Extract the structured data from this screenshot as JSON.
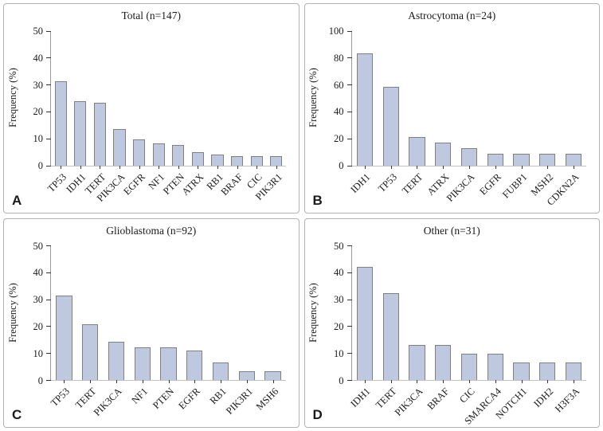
{
  "figure": {
    "bar_fill": "#bec8df",
    "bar_border": "#808080",
    "panel_border": "#b3b3b3",
    "axis_color": "#9a9a9a",
    "baseline_color": "#c2c2c2"
  },
  "chart_data": [
    {
      "type": "bar",
      "panel_label": "A",
      "title": "Total (n=147)",
      "xlabel": "",
      "ylabel": "Frequency (%)",
      "ylim": [
        0,
        50
      ],
      "yticks": [
        0,
        10,
        20,
        30,
        40,
        50
      ],
      "grid": false,
      "legend": "none",
      "categories": [
        "TP53",
        "IDH1",
        "TERT",
        "PIK3CA",
        "EGFR",
        "NF1",
        "PTEN",
        "ATRX",
        "RB1",
        "BRAF",
        "CIC",
        "PIK3R1"
      ],
      "values": [
        31.3,
        23.8,
        23.1,
        13.6,
        9.5,
        8.2,
        7.5,
        4.8,
        4.1,
        3.4,
        3.4,
        3.4
      ]
    },
    {
      "type": "bar",
      "panel_label": "B",
      "title": "Astrocytoma (n=24)",
      "xlabel": "",
      "ylabel": "Frequency (%)",
      "ylim": [
        0,
        100
      ],
      "yticks": [
        0,
        20,
        40,
        60,
        80,
        100
      ],
      "grid": false,
      "legend": "none",
      "categories": [
        "IDH1",
        "TP53",
        "TERT",
        "ATRX",
        "PIK3CA",
        "EGFR",
        "FUBP1",
        "MSH2",
        "CDKN2A"
      ],
      "values": [
        83.3,
        58.3,
        20.8,
        16.7,
        12.5,
        8.3,
        8.3,
        8.3,
        8.3
      ]
    },
    {
      "type": "bar",
      "panel_label": "C",
      "title": "Glioblastoma (n=92)",
      "xlabel": "",
      "ylabel": "Frequency (%)",
      "ylim": [
        0,
        50
      ],
      "yticks": [
        0,
        10,
        20,
        30,
        40,
        50
      ],
      "grid": false,
      "legend": "none",
      "categories": [
        "TP53",
        "TERT",
        "PIK3CA",
        "NF1",
        "PTEN",
        "EGFR",
        "RB1",
        "PIK3R1",
        "MSH6"
      ],
      "values": [
        31.5,
        20.7,
        14.1,
        12.0,
        12.0,
        10.9,
        6.5,
        3.3,
        3.3
      ]
    },
    {
      "type": "bar",
      "panel_label": "D",
      "title": "Other (n=31)",
      "xlabel": "",
      "ylabel": "Frequency (%)",
      "ylim": [
        0,
        50
      ],
      "yticks": [
        0,
        10,
        20,
        30,
        40,
        50
      ],
      "grid": false,
      "legend": "none",
      "categories": [
        "IDH1",
        "TERT",
        "PIK3CA",
        "BRAF",
        "CIC",
        "SMARCA4",
        "NOTCH1",
        "IDH2",
        "H3F3A"
      ],
      "values": [
        41.9,
        32.3,
        12.9,
        12.9,
        9.7,
        9.7,
        6.5,
        6.5,
        6.5
      ]
    }
  ]
}
